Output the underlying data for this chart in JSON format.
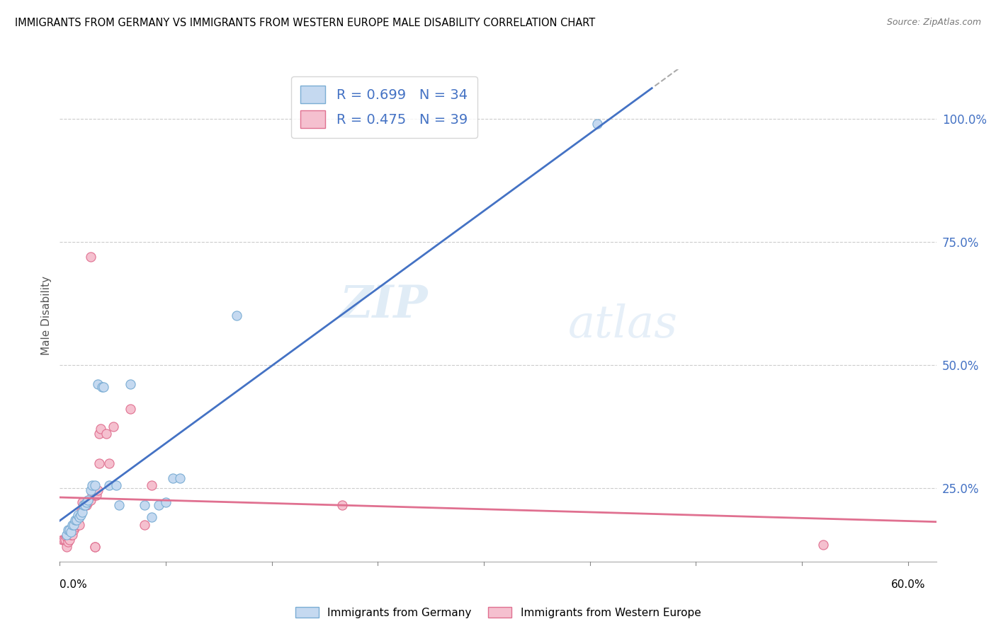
{
  "title": "IMMIGRANTS FROM GERMANY VS IMMIGRANTS FROM WESTERN EUROPE MALE DISABILITY CORRELATION CHART",
  "source": "Source: ZipAtlas.com",
  "ylabel": "Male Disability",
  "yticks": [
    0.0,
    0.25,
    0.5,
    0.75,
    1.0
  ],
  "ytick_labels": [
    "",
    "25.0%",
    "50.0%",
    "75.0%",
    "100.0%"
  ],
  "legend1_R": "R = 0.699",
  "legend1_N": "N = 34",
  "legend2_R": "R = 0.475",
  "legend2_N": "N = 39",
  "watermark_zip": "ZIP",
  "watermark_atlas": "atlas",
  "germany_face_color": "#c5d9f0",
  "germany_edge_color": "#7aadd4",
  "western_face_color": "#f5c0cf",
  "western_edge_color": "#e07090",
  "germany_line_color": "#4472c4",
  "western_line_color": "#e07090",
  "germany_scatter": [
    [
      0.005,
      0.155
    ],
    [
      0.006,
      0.165
    ],
    [
      0.007,
      0.165
    ],
    [
      0.008,
      0.16
    ],
    [
      0.009,
      0.175
    ],
    [
      0.01,
      0.175
    ],
    [
      0.011,
      0.185
    ],
    [
      0.012,
      0.185
    ],
    [
      0.013,
      0.195
    ],
    [
      0.014,
      0.19
    ],
    [
      0.015,
      0.195
    ],
    [
      0.016,
      0.2
    ],
    [
      0.017,
      0.215
    ],
    [
      0.018,
      0.215
    ],
    [
      0.019,
      0.22
    ],
    [
      0.02,
      0.225
    ],
    [
      0.022,
      0.245
    ],
    [
      0.023,
      0.255
    ],
    [
      0.025,
      0.255
    ],
    [
      0.027,
      0.46
    ],
    [
      0.03,
      0.455
    ],
    [
      0.031,
      0.455
    ],
    [
      0.035,
      0.255
    ],
    [
      0.04,
      0.255
    ],
    [
      0.042,
      0.215
    ],
    [
      0.05,
      0.46
    ],
    [
      0.06,
      0.215
    ],
    [
      0.065,
      0.19
    ],
    [
      0.07,
      0.215
    ],
    [
      0.075,
      0.22
    ],
    [
      0.08,
      0.27
    ],
    [
      0.085,
      0.27
    ],
    [
      0.38,
      0.99
    ],
    [
      0.125,
      0.6
    ]
  ],
  "western_scatter": [
    [
      0.002,
      0.145
    ],
    [
      0.003,
      0.145
    ],
    [
      0.004,
      0.145
    ],
    [
      0.005,
      0.15
    ],
    [
      0.005,
      0.13
    ],
    [
      0.006,
      0.14
    ],
    [
      0.007,
      0.145
    ],
    [
      0.008,
      0.155
    ],
    [
      0.009,
      0.155
    ],
    [
      0.01,
      0.165
    ],
    [
      0.011,
      0.17
    ],
    [
      0.012,
      0.175
    ],
    [
      0.013,
      0.18
    ],
    [
      0.014,
      0.175
    ],
    [
      0.015,
      0.2
    ],
    [
      0.016,
      0.22
    ],
    [
      0.017,
      0.215
    ],
    [
      0.018,
      0.215
    ],
    [
      0.019,
      0.215
    ],
    [
      0.02,
      0.22
    ],
    [
      0.022,
      0.225
    ],
    [
      0.023,
      0.235
    ],
    [
      0.025,
      0.235
    ],
    [
      0.026,
      0.235
    ],
    [
      0.027,
      0.245
    ],
    [
      0.028,
      0.36
    ],
    [
      0.029,
      0.37
    ],
    [
      0.033,
      0.36
    ],
    [
      0.038,
      0.375
    ],
    [
      0.05,
      0.41
    ],
    [
      0.022,
      0.72
    ],
    [
      0.06,
      0.175
    ],
    [
      0.065,
      0.255
    ],
    [
      0.028,
      0.3
    ],
    [
      0.035,
      0.3
    ],
    [
      0.025,
      0.13
    ],
    [
      0.025,
      0.13
    ],
    [
      0.2,
      0.215
    ],
    [
      0.54,
      0.135
    ]
  ],
  "xlim": [
    0.0,
    0.62
  ],
  "ylim": [
    0.0,
    1.1
  ],
  "plot_ylim": [
    0.1,
    1.1
  ],
  "figsize": [
    14.06,
    8.92
  ],
  "dpi": 100
}
